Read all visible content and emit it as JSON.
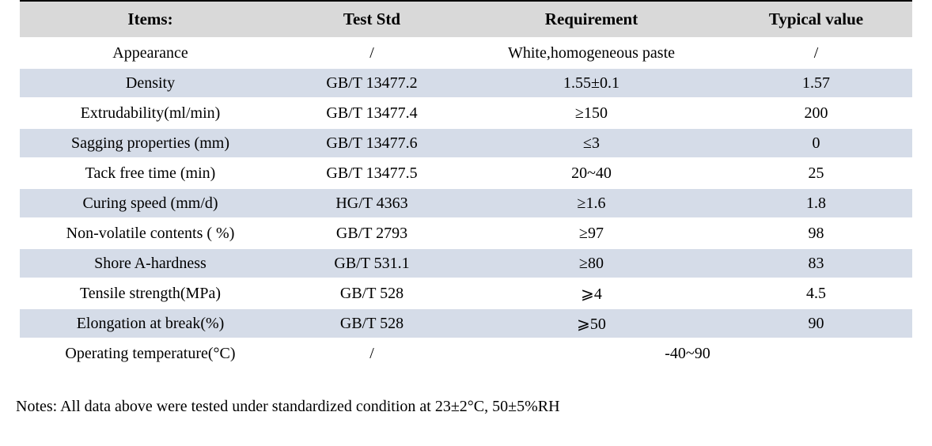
{
  "table": {
    "columns": [
      "Items:",
      "Test Std",
      "Requirement",
      "Typical value"
    ],
    "rows": [
      {
        "item": "Appearance",
        "std": "/",
        "req": "White,homogeneous paste",
        "typ": "/"
      },
      {
        "item": "Density",
        "std": "GB/T 13477.2",
        "req": "1.55±0.1",
        "typ": "1.57"
      },
      {
        "item": "Extrudability(ml/min)",
        "std": "GB/T 13477.4",
        "req": "≥150",
        "typ": "200"
      },
      {
        "item": "Sagging properties (mm)",
        "std": "GB/T 13477.6",
        "req": "≤3",
        "typ": "0"
      },
      {
        "item": "Tack free time (min)",
        "std": "GB/T 13477.5",
        "req": "20~40",
        "typ": "25"
      },
      {
        "item": "Curing speed (mm/d)",
        "std": "HG/T 4363",
        "req": "≥1.6",
        "typ": "1.8"
      },
      {
        "item": "Non-volatile contents ( %)",
        "std": "GB/T 2793",
        "req": "≥97",
        "typ": "98"
      },
      {
        "item": "Shore A-hardness",
        "std": "GB/T 531.1",
        "req": "≥80",
        "typ": "83"
      },
      {
        "item": "Tensile strength(MPa)",
        "std": "GB/T 528",
        "req": "⩾4",
        "typ": "4.5"
      },
      {
        "item": "Elongation at break(%)",
        "std": "GB/T 528",
        "req": "⩾50",
        "typ": "90"
      },
      {
        "item": "Operating temperature(°C)",
        "std": "/",
        "req": "-40~90",
        "typ": null,
        "req_colspan": 2
      }
    ]
  },
  "notes": "Notes: All data above were tested under standardized condition at 23±2°C, 50±5%RH",
  "colors": {
    "header_bg": "#d9d9d9",
    "stripe_bg": "#d5dce8",
    "top_border": "#000000",
    "text": "#000000"
  }
}
